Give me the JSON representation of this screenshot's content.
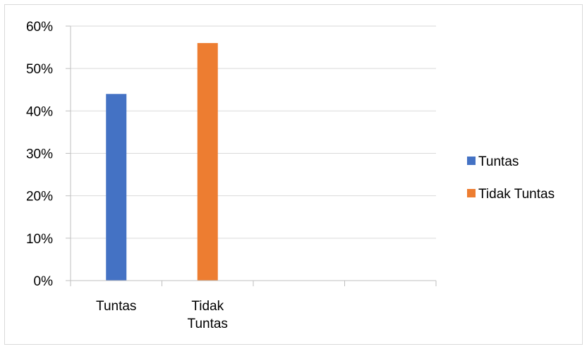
{
  "chart_data": {
    "type": "bar",
    "title": "",
    "xlabel": "",
    "ylabel": "",
    "categories": [
      [
        "Tuntas"
      ],
      [
        "Tidak",
        "Tuntas"
      ],
      [
        ""
      ],
      [
        ""
      ]
    ],
    "series": [
      {
        "name": "Tuntas",
        "color": "#4472c4",
        "values": [
          44,
          null,
          null,
          null
        ]
      },
      {
        "name": "Tidak Tuntas",
        "color": "#ed7d31",
        "values": [
          null,
          56,
          null,
          null
        ]
      }
    ],
    "ylim": [
      0,
      60
    ],
    "yticks": [
      0,
      10,
      20,
      30,
      40,
      50,
      60
    ],
    "ytick_labels": [
      "0%",
      "10%",
      "20%",
      "30%",
      "40%",
      "50%",
      "60%"
    ],
    "grid": true,
    "legend_position": "right",
    "colors": {
      "grid": "#d9d9d9",
      "axis": "#bfbfbf",
      "frame": "#d9d9d9"
    }
  }
}
